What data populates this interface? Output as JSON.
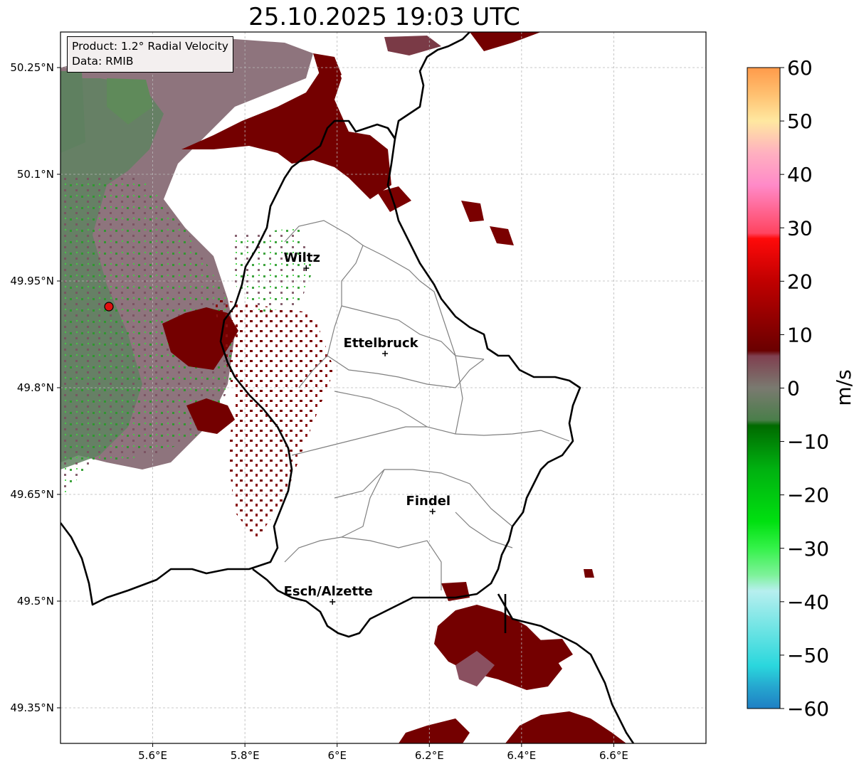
{
  "title": "25.10.2025 19:03 UTC",
  "info": {
    "product": "Product: 1.2° Radial Velocity",
    "source": "Data: RMIB"
  },
  "map": {
    "lon_range": [
      5.4,
      6.8
    ],
    "lat_range": [
      49.3,
      50.3
    ],
    "x_ticks": [
      {
        "value": 5.6,
        "label": "5.6°E"
      },
      {
        "value": 5.8,
        "label": "5.8°E"
      },
      {
        "value": 6.0,
        "label": "6°E"
      },
      {
        "value": 6.2,
        "label": "6.2°E"
      },
      {
        "value": 6.4,
        "label": "6.4°E"
      },
      {
        "value": 6.6,
        "label": "6.6°E"
      }
    ],
    "y_ticks": [
      {
        "value": 50.25,
        "label": "50.25°N"
      },
      {
        "value": 50.1,
        "label": "50.1°N"
      },
      {
        "value": 49.95,
        "label": "49.95°N"
      },
      {
        "value": 49.8,
        "label": "49.8°N"
      },
      {
        "value": 49.65,
        "label": "49.65°N"
      },
      {
        "value": 49.5,
        "label": "49.5°N"
      },
      {
        "value": 49.35,
        "label": "49.35°N"
      }
    ],
    "grid": true,
    "radar_site": {
      "lon": 5.505,
      "lat": 49.914,
      "color": "#e01010"
    },
    "cities": [
      {
        "name": "Wiltz",
        "lon": 5.933,
        "lat": 49.968
      },
      {
        "name": "Ettelbruck",
        "lon": 6.104,
        "lat": 49.848
      },
      {
        "name": "Findel",
        "lon": 6.207,
        "lat": 49.626
      },
      {
        "name": "Esch/Alzette",
        "lon": 5.99,
        "lat": 49.499
      }
    ]
  },
  "colorbar": {
    "unit": "m/s",
    "min": -60,
    "max": 60,
    "tick_labels": [
      "60",
      "50",
      "40",
      "30",
      "20",
      "10",
      "0",
      "−10",
      "−20",
      "−30",
      "−40",
      "−50",
      "−60"
    ],
    "tick_values": [
      60,
      50,
      40,
      30,
      20,
      10,
      0,
      -10,
      -20,
      -30,
      -40,
      -50,
      -60
    ],
    "stops": [
      {
        "v": -60,
        "color": "#1f7fc4"
      },
      {
        "v": -56,
        "color": "#25a6cf"
      },
      {
        "v": -52,
        "color": "#2ad7dd"
      },
      {
        "v": -45,
        "color": "#6fe4e4"
      },
      {
        "v": -38,
        "color": "#b7efef"
      },
      {
        "v": -35,
        "color": "#7ef29a"
      },
      {
        "v": -30,
        "color": "#35f24a"
      },
      {
        "v": -25,
        "color": "#00e010"
      },
      {
        "v": -15,
        "color": "#00b010"
      },
      {
        "v": -7,
        "color": "#006a00"
      },
      {
        "v": -6,
        "color": "#4a7e4a"
      },
      {
        "v": 0,
        "color": "#7a7a70"
      },
      {
        "v": 6,
        "color": "#804050"
      },
      {
        "v": 7,
        "color": "#6a0000"
      },
      {
        "v": 20,
        "color": "#c00000"
      },
      {
        "v": 28,
        "color": "#ff0a0a"
      },
      {
        "v": 29,
        "color": "#ff4460"
      },
      {
        "v": 38,
        "color": "#ff8ac8"
      },
      {
        "v": 44,
        "color": "#ffb0c0"
      },
      {
        "v": 50,
        "color": "#ffe8a0"
      },
      {
        "v": 55,
        "color": "#ffc070"
      },
      {
        "v": 60,
        "color": "#ff9a4a"
      }
    ]
  },
  "colors": {
    "outbound_dark": "#740000",
    "neutral_mauve": "#846068",
    "inbound_gray_green": "#5f8260",
    "national_border": "#000000",
    "canton_border": "#808080"
  }
}
